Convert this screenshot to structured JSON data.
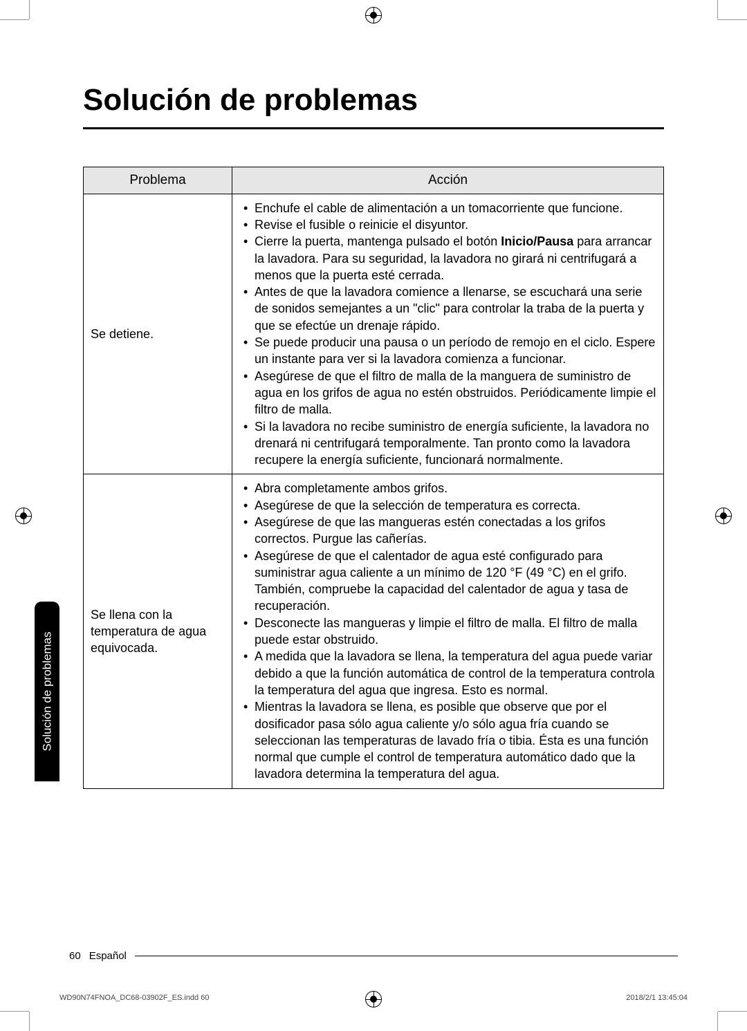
{
  "title": "Solución de problemas",
  "table": {
    "headers": {
      "problem": "Problema",
      "action": "Acción"
    },
    "rows": [
      {
        "problem": "Se detiene.",
        "actions": [
          {
            "text": "Enchufe el cable de alimentación a un tomacorriente que funcione."
          },
          {
            "text": "Revise el fusible o reinicie el disyuntor."
          },
          {
            "pre": "Cierre la puerta, mantenga pulsado el botón ",
            "bold": "Inicio/Pausa",
            "post": " para arrancar la lavadora. Para su seguridad, la lavadora no girará ni centrifugará a menos que la puerta esté cerrada."
          },
          {
            "text": "Antes de que la lavadora comience a llenarse, se escuchará una serie de sonidos semejantes a un \"clic\" para controlar la traba de la puerta y que se efectúe un drenaje rápido."
          },
          {
            "text": "Se puede producir una pausa o un período de remojo en el ciclo. Espere un instante para ver si la lavadora comienza a funcionar."
          },
          {
            "text": "Asegúrese de que el filtro de malla de la manguera de suministro de agua en los grifos de agua no estén obstruidos. Periódicamente limpie el filtro de malla."
          },
          {
            "text": "Si la lavadora no recibe suministro de energía suficiente, la lavadora no drenará ni centrifugará temporalmente. Tan pronto como la lavadora recupere la energía suficiente, funcionará normalmente."
          }
        ]
      },
      {
        "problem": "Se llena con la temperatura de agua equivocada.",
        "actions": [
          {
            "text": "Abra completamente ambos grifos."
          },
          {
            "text": "Asegúrese de que la selección de temperatura es correcta."
          },
          {
            "text": "Asegúrese de que las mangueras estén conectadas a los grifos correctos. Purgue las cañerías."
          },
          {
            "text": "Asegúrese de que el calentador de agua esté configurado para suministrar agua caliente a un mínimo de 120 °F (49 °C) en el grifo. También, compruebe la capacidad del calentador de agua y tasa de recuperación."
          },
          {
            "text": "Desconecte las mangueras y limpie el filtro de malla. El filtro de malla puede estar obstruido."
          },
          {
            "text": "A medida que la lavadora se llena, la temperatura del agua puede variar debido a que la función automática de control de la temperatura controla la temperatura del agua que ingresa. Esto es normal."
          },
          {
            "text": "Mientras la lavadora se llena, es posible que observe que por el dosificador pasa sólo agua caliente y/o sólo agua fría cuando se seleccionan las temperaturas de lavado fría o tibia. Ésta es una función normal que cumple el control de temperatura automático dado que la lavadora determina la temperatura del agua."
          }
        ]
      }
    ]
  },
  "side_tab": "Solución de problemas",
  "footer": {
    "page": "60",
    "lang": "Español"
  },
  "imprint": {
    "left": "WD90N74FNOA_DC68-03902F_ES.indd   60",
    "right": "2018/2/1   13:45:04"
  },
  "colors": {
    "header_bg": "#e6e6e6",
    "text": "#000000",
    "tab_bg": "#000000",
    "tab_text": "#ffffff"
  }
}
